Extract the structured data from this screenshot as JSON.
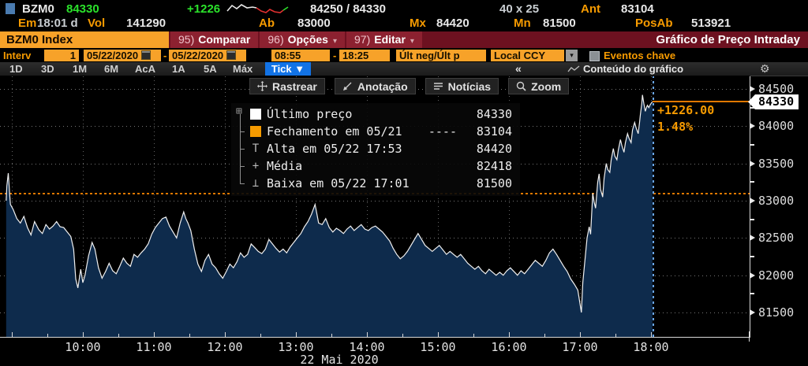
{
  "header": {
    "ticker": "BZM0",
    "last": "84330",
    "change": "+1226",
    "bid_ask": "84250 / 84330",
    "size": "40 x 25",
    "ant_label": "Ant",
    "ant": "83104",
    "em_label": "Em",
    "em": "18:01 d",
    "vol_label": "Vol",
    "vol": "141290",
    "ab_label": "Ab",
    "ab": "83000",
    "mx_label": "Mx",
    "mx": "84420",
    "mn_label": "Mn",
    "mn": "81500",
    "posab_label": "PosAb",
    "posab": "513921",
    "sparkline": {
      "white": [
        [
          1,
          11
        ],
        [
          7,
          4
        ],
        [
          13,
          8
        ],
        [
          19,
          3
        ],
        [
          26,
          7
        ],
        [
          33,
          6
        ],
        [
          38,
          7
        ]
      ],
      "red": [
        [
          38,
          7
        ],
        [
          44,
          11
        ],
        [
          50,
          13
        ],
        [
          55,
          9
        ],
        [
          61,
          12
        ],
        [
          68,
          13
        ],
        [
          72,
          10
        ]
      ],
      "green": [
        [
          72,
          10
        ],
        [
          78,
          6
        ]
      ]
    }
  },
  "toolbar": {
    "security": "BZM0 Index",
    "items": [
      {
        "num": "95)",
        "label": "Comparar",
        "caret": false
      },
      {
        "num": "96)",
        "label": "Opções",
        "caret": true
      },
      {
        "num": "97)",
        "label": "Editar",
        "caret": true
      }
    ],
    "title": "Gráfico de Preço Intraday"
  },
  "filters": {
    "interv_label": "Interv",
    "interval": "1",
    "date_from": "05/22/2020",
    "date_to": "05/22/2020",
    "separator": "-",
    "time_from": "08:55",
    "time_to": "18:25",
    "price_source": "Últ neg/Últ p",
    "currency": "Local CCY",
    "events_label": "Eventos chave"
  },
  "range_bar": {
    "tabs": [
      "1D",
      "3D",
      "1M",
      "6M",
      "AcA",
      "1A",
      "5A",
      "Máx"
    ],
    "active": "Tick ▼",
    "collapse": "«",
    "content_label": "Conteúdo do gráfico"
  },
  "chart_toolbar": {
    "items": [
      {
        "icon": "crosshair",
        "label": "Rastrear"
      },
      {
        "icon": "annotation",
        "label": "Anotação"
      },
      {
        "icon": "news",
        "label": "Notícias"
      },
      {
        "icon": "zoom",
        "label": "Zoom"
      }
    ]
  },
  "legend": {
    "expand_glyph": "⊞",
    "rows": [
      {
        "icon": "square",
        "color": "#ffffff",
        "label": "Último preço",
        "dashes": "",
        "value": "84330"
      },
      {
        "icon": "square",
        "color": "#f59a00",
        "label": "Fechamento em 05/21",
        "dashes": "----",
        "value": "83104"
      },
      {
        "icon": "high",
        "color": "#b9b9b9",
        "label": "Alta em 05/22 17:53",
        "dashes": "",
        "value": "84420"
      },
      {
        "icon": "mean",
        "color": "#b9b9b9",
        "label": "Média",
        "dashes": "",
        "value": "82418"
      },
      {
        "icon": "low",
        "color": "#b9b9b9",
        "label": "Baixa em 05/22 17:01",
        "dashes": "",
        "value": "81500"
      }
    ]
  },
  "annotations": {
    "change_abs": "+1226.00",
    "change_pct": "1.48%",
    "last_tag": "84330"
  },
  "chart_data": {
    "type": "line",
    "title": "Gráfico de Preço Intraday",
    "x_ticks": [
      "10:00",
      "11:00",
      "12:00",
      "13:00",
      "14:00",
      "15:00",
      "16:00",
      "17:00",
      "18:00"
    ],
    "date_label": "22 Mai 2020",
    "y_ticks": [
      84500,
      84000,
      83500,
      83000,
      82500,
      82000,
      81500
    ],
    "ylim": [
      81170,
      84670
    ],
    "x_hours_range": [
      8.87,
      18.42
    ],
    "grid": "dotted",
    "legend_position": "top-left-panel",
    "open": 83000,
    "prev_close": 83104,
    "last_price": 84330,
    "high": 84420,
    "high_time": "17:53",
    "low": 81500,
    "low_time": "17:01",
    "mean": 82418,
    "session_end_hour": 18.02,
    "colors": {
      "line": "#f0f0f0",
      "fill": "#0e2b4c",
      "prev_close_line": "#e07800",
      "last_price_line": "#e07800",
      "session_end_line": "#6aa6e8"
    },
    "points": [
      [
        8.92,
        83000
      ],
      [
        8.93,
        83200
      ],
      [
        8.95,
        83370
      ],
      [
        8.97,
        83080
      ],
      [
        8.98,
        82950
      ],
      [
        9.02,
        82880
      ],
      [
        9.07,
        82760
      ],
      [
        9.12,
        82700
      ],
      [
        9.17,
        82790
      ],
      [
        9.22,
        82640
      ],
      [
        9.27,
        82540
      ],
      [
        9.32,
        82720
      ],
      [
        9.38,
        82610
      ],
      [
        9.43,
        82560
      ],
      [
        9.48,
        82680
      ],
      [
        9.53,
        82620
      ],
      [
        9.58,
        82660
      ],
      [
        9.63,
        82720
      ],
      [
        9.68,
        82650
      ],
      [
        9.73,
        82640
      ],
      [
        9.78,
        82580
      ],
      [
        9.83,
        82520
      ],
      [
        9.87,
        82350
      ],
      [
        9.9,
        81950
      ],
      [
        9.93,
        81830
      ],
      [
        9.97,
        82080
      ],
      [
        10.0,
        81900
      ],
      [
        10.03,
        82000
      ],
      [
        10.08,
        82260
      ],
      [
        10.13,
        82440
      ],
      [
        10.17,
        82350
      ],
      [
        10.22,
        82100
      ],
      [
        10.27,
        81960
      ],
      [
        10.32,
        82050
      ],
      [
        10.37,
        82160
      ],
      [
        10.42,
        82060
      ],
      [
        10.47,
        82020
      ],
      [
        10.52,
        82120
      ],
      [
        10.57,
        82230
      ],
      [
        10.62,
        82160
      ],
      [
        10.67,
        82120
      ],
      [
        10.72,
        82280
      ],
      [
        10.77,
        82240
      ],
      [
        10.82,
        82300
      ],
      [
        10.87,
        82350
      ],
      [
        10.92,
        82420
      ],
      [
        10.97,
        82550
      ],
      [
        11.02,
        82640
      ],
      [
        11.07,
        82700
      ],
      [
        11.12,
        82760
      ],
      [
        11.17,
        82780
      ],
      [
        11.22,
        82660
      ],
      [
        11.27,
        82580
      ],
      [
        11.32,
        82500
      ],
      [
        11.37,
        82700
      ],
      [
        11.42,
        82850
      ],
      [
        11.45,
        82760
      ],
      [
        11.48,
        82700
      ],
      [
        11.52,
        82600
      ],
      [
        11.57,
        82350
      ],
      [
        11.62,
        82150
      ],
      [
        11.67,
        82050
      ],
      [
        11.72,
        82200
      ],
      [
        11.77,
        82280
      ],
      [
        11.82,
        82150
      ],
      [
        11.87,
        82100
      ],
      [
        11.92,
        82020
      ],
      [
        11.97,
        81960
      ],
      [
        12.02,
        82050
      ],
      [
        12.07,
        82150
      ],
      [
        12.12,
        82100
      ],
      [
        12.17,
        82180
      ],
      [
        12.22,
        82300
      ],
      [
        12.27,
        82240
      ],
      [
        12.32,
        82280
      ],
      [
        12.37,
        82420
      ],
      [
        12.42,
        82370
      ],
      [
        12.47,
        82320
      ],
      [
        12.52,
        82290
      ],
      [
        12.57,
        82350
      ],
      [
        12.62,
        82480
      ],
      [
        12.67,
        82420
      ],
      [
        12.72,
        82360
      ],
      [
        12.77,
        82310
      ],
      [
        12.82,
        82350
      ],
      [
        12.87,
        82300
      ],
      [
        12.92,
        82380
      ],
      [
        12.97,
        82440
      ],
      [
        13.02,
        82500
      ],
      [
        13.07,
        82560
      ],
      [
        13.12,
        82650
      ],
      [
        13.17,
        82720
      ],
      [
        13.22,
        82820
      ],
      [
        13.27,
        82950
      ],
      [
        13.32,
        82700
      ],
      [
        13.37,
        82680
      ],
      [
        13.42,
        82760
      ],
      [
        13.47,
        82640
      ],
      [
        13.52,
        82580
      ],
      [
        13.57,
        82630
      ],
      [
        13.62,
        82600
      ],
      [
        13.67,
        82560
      ],
      [
        13.72,
        82620
      ],
      [
        13.77,
        82660
      ],
      [
        13.82,
        82600
      ],
      [
        13.87,
        82640
      ],
      [
        13.92,
        82680
      ],
      [
        13.97,
        82620
      ],
      [
        14.02,
        82600
      ],
      [
        14.07,
        82640
      ],
      [
        14.12,
        82660
      ],
      [
        14.17,
        82620
      ],
      [
        14.22,
        82580
      ],
      [
        14.27,
        82520
      ],
      [
        14.32,
        82460
      ],
      [
        14.37,
        82360
      ],
      [
        14.42,
        82280
      ],
      [
        14.47,
        82220
      ],
      [
        14.52,
        82260
      ],
      [
        14.57,
        82320
      ],
      [
        14.62,
        82400
      ],
      [
        14.67,
        82480
      ],
      [
        14.72,
        82560
      ],
      [
        14.77,
        82480
      ],
      [
        14.82,
        82400
      ],
      [
        14.87,
        82360
      ],
      [
        14.92,
        82320
      ],
      [
        14.97,
        82360
      ],
      [
        15.02,
        82400
      ],
      [
        15.07,
        82340
      ],
      [
        15.12,
        82280
      ],
      [
        15.17,
        82320
      ],
      [
        15.22,
        82280
      ],
      [
        15.27,
        82240
      ],
      [
        15.32,
        82280
      ],
      [
        15.37,
        82220
      ],
      [
        15.42,
        82160
      ],
      [
        15.47,
        82120
      ],
      [
        15.52,
        82080
      ],
      [
        15.57,
        82120
      ],
      [
        15.62,
        82060
      ],
      [
        15.67,
        82020
      ],
      [
        15.72,
        82080
      ],
      [
        15.77,
        82040
      ],
      [
        15.82,
        82000
      ],
      [
        15.87,
        82040
      ],
      [
        15.92,
        82000
      ],
      [
        15.97,
        82060
      ],
      [
        16.02,
        82100
      ],
      [
        16.07,
        82050
      ],
      [
        16.12,
        82000
      ],
      [
        16.17,
        82060
      ],
      [
        16.22,
        82020
      ],
      [
        16.27,
        82080
      ],
      [
        16.32,
        82140
      ],
      [
        16.37,
        82200
      ],
      [
        16.42,
        82160
      ],
      [
        16.47,
        82120
      ],
      [
        16.52,
        82200
      ],
      [
        16.57,
        82300
      ],
      [
        16.62,
        82350
      ],
      [
        16.67,
        82280
      ],
      [
        16.72,
        82200
      ],
      [
        16.77,
        82120
      ],
      [
        16.82,
        82050
      ],
      [
        16.87,
        81950
      ],
      [
        16.92,
        81880
      ],
      [
        16.97,
        81800
      ],
      [
        17.02,
        81500
      ],
      [
        17.04,
        81900
      ],
      [
        17.06,
        82100
      ],
      [
        17.08,
        82300
      ],
      [
        17.1,
        82500
      ],
      [
        17.13,
        82650
      ],
      [
        17.15,
        82550
      ],
      [
        17.18,
        83100
      ],
      [
        17.2,
        82980
      ],
      [
        17.22,
        82900
      ],
      [
        17.25,
        83250
      ],
      [
        17.27,
        83360
      ],
      [
        17.29,
        83150
      ],
      [
        17.32,
        83050
      ],
      [
        17.34,
        83300
      ],
      [
        17.37,
        83500
      ],
      [
        17.39,
        83420
      ],
      [
        17.42,
        83380
      ],
      [
        17.44,
        83550
      ],
      [
        17.47,
        83700
      ],
      [
        17.49,
        83600
      ],
      [
        17.52,
        83550
      ],
      [
        17.54,
        83680
      ],
      [
        17.57,
        83820
      ],
      [
        17.59,
        83740
      ],
      [
        17.62,
        83650
      ],
      [
        17.64,
        83780
      ],
      [
        17.67,
        83900
      ],
      [
        17.69,
        83840
      ],
      [
        17.72,
        83780
      ],
      [
        17.74,
        83950
      ],
      [
        17.77,
        84050
      ],
      [
        17.79,
        83980
      ],
      [
        17.82,
        83900
      ],
      [
        17.84,
        84060
      ],
      [
        17.85,
        84150
      ],
      [
        17.87,
        84300
      ],
      [
        17.88,
        84420
      ],
      [
        17.9,
        84300
      ],
      [
        17.92,
        84200
      ],
      [
        17.94,
        84260
      ],
      [
        17.95,
        84280
      ],
      [
        17.97,
        84250
      ],
      [
        17.99,
        84290
      ],
      [
        18.02,
        84330
      ]
    ]
  }
}
